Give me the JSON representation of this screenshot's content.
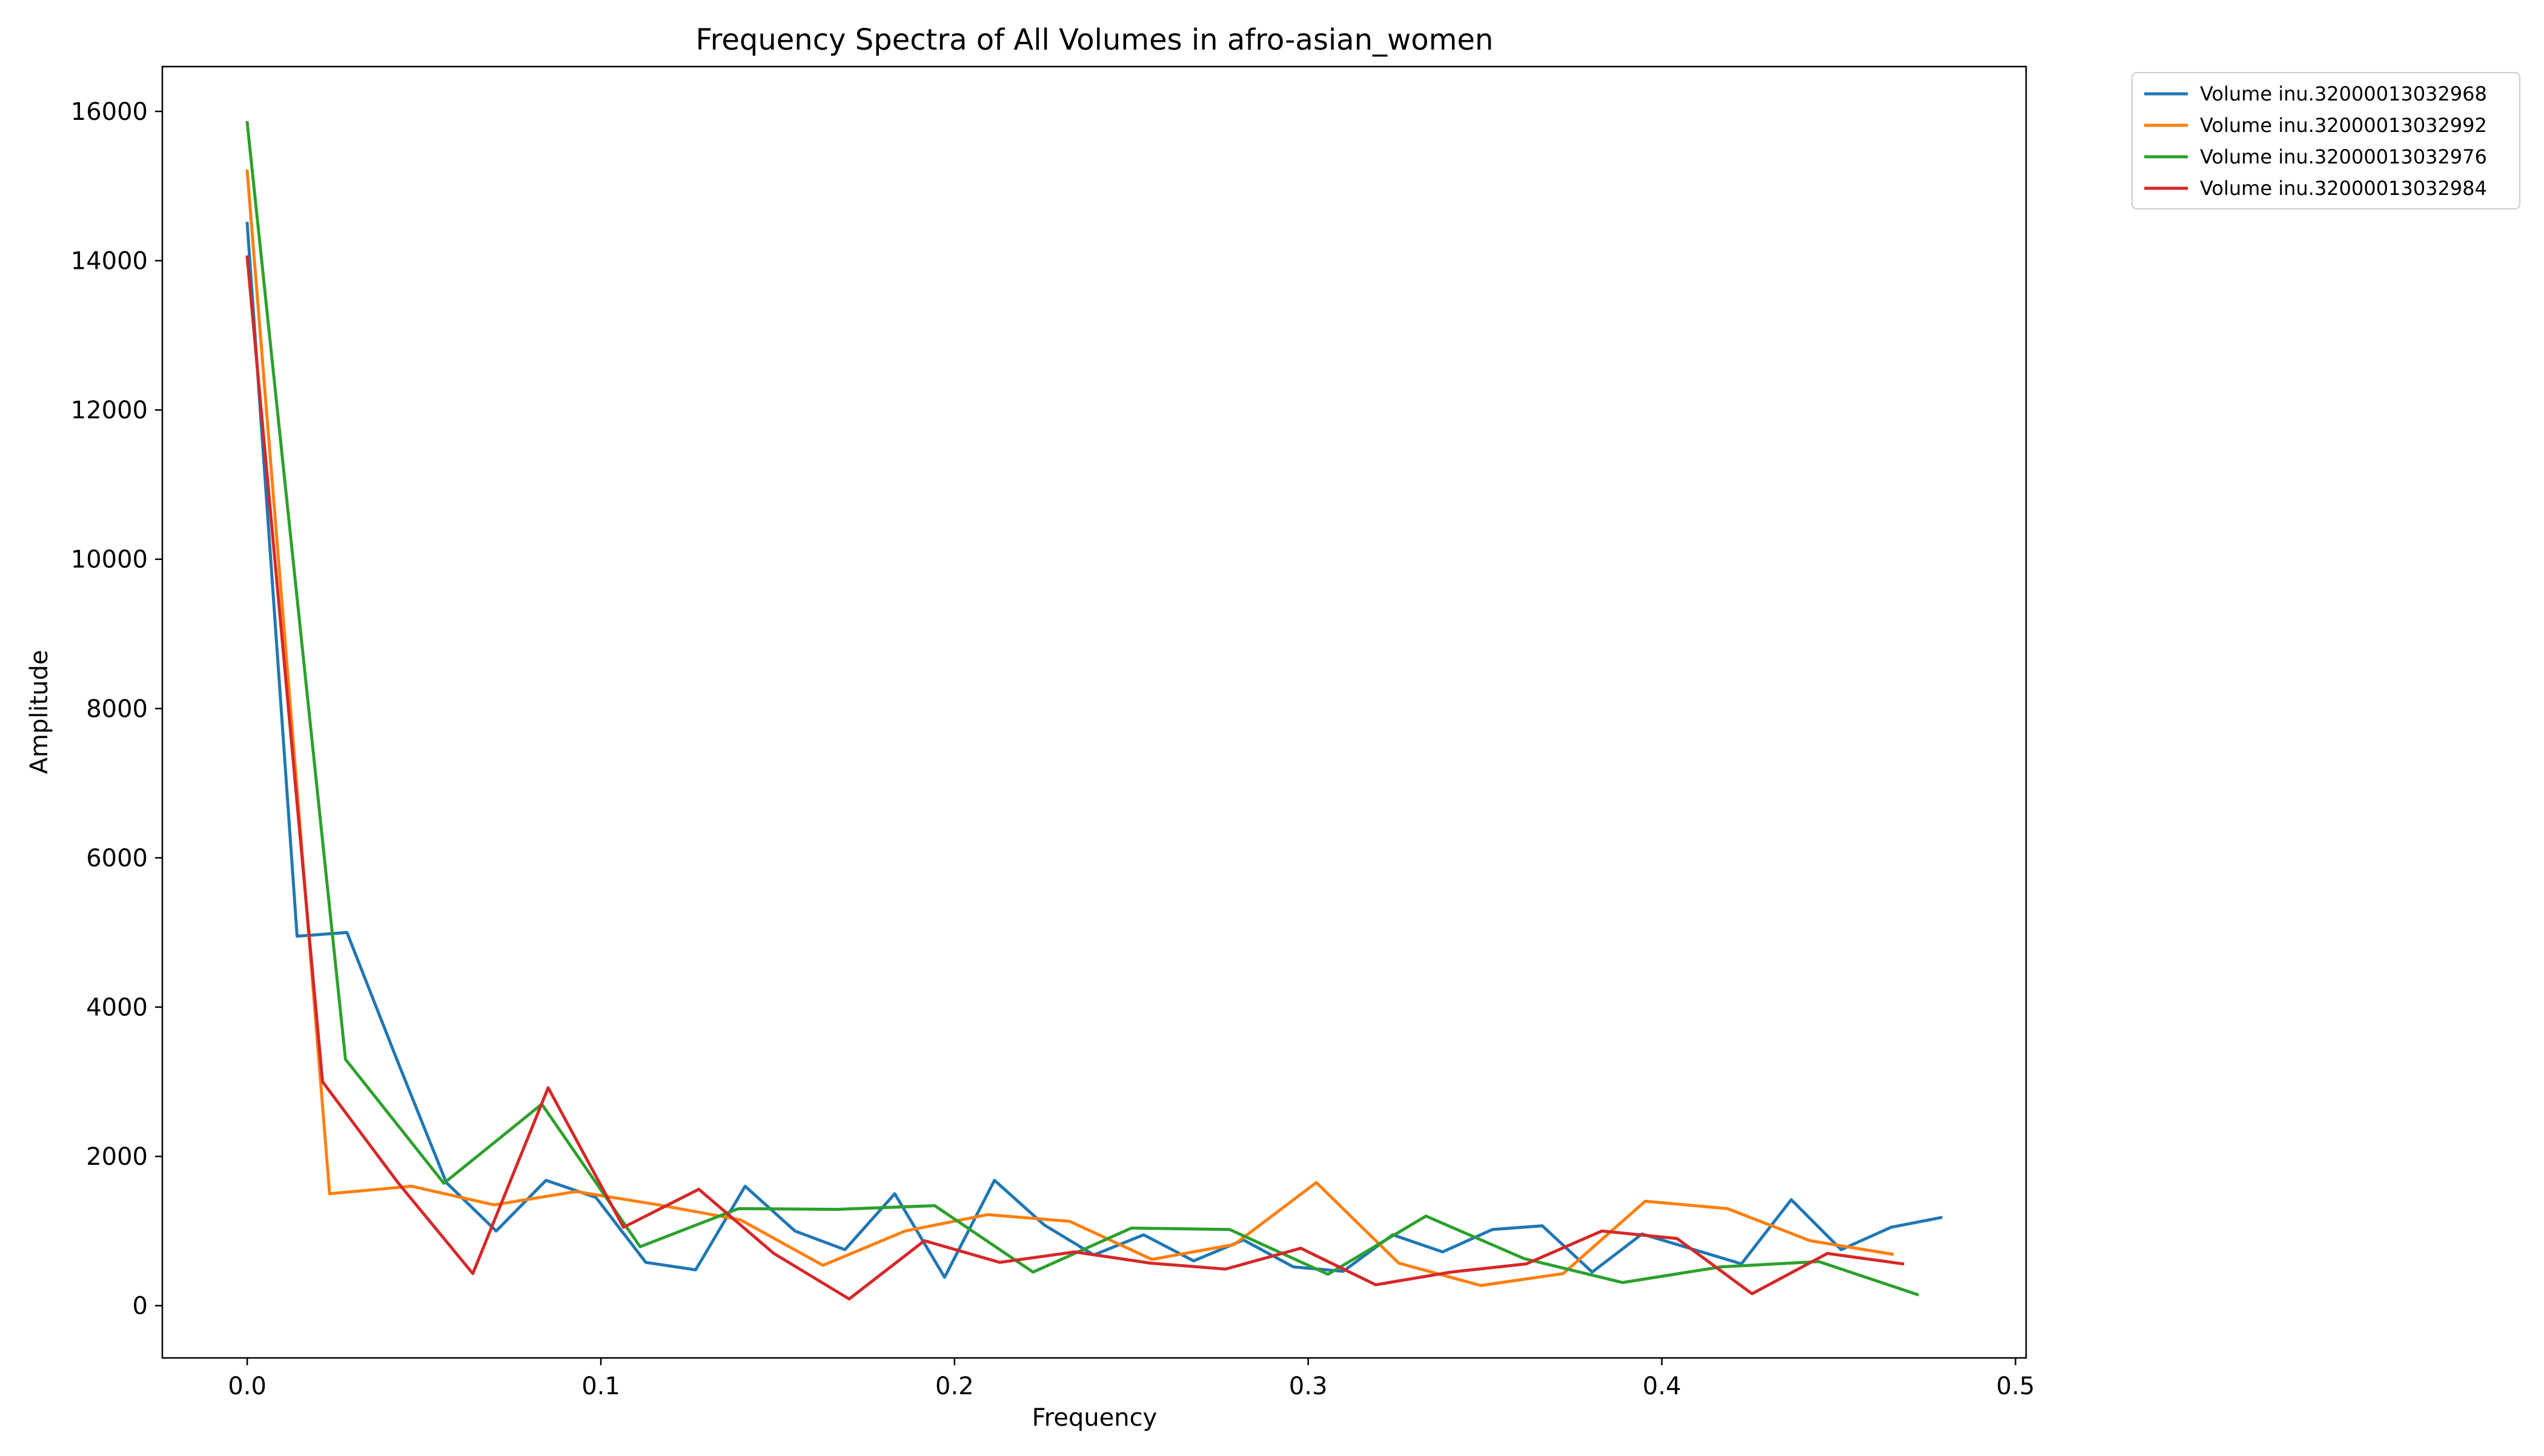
{
  "chart_data": {
    "type": "line",
    "title": "Frequency Spectra of All Volumes in afro-asian_women",
    "xlabel": "Frequency",
    "ylabel": "Amplitude",
    "xlim": [
      -0.024,
      0.503
    ],
    "ylim": [
      -700,
      16600
    ],
    "xticks": [
      0.0,
      0.1,
      0.2,
      0.3,
      0.4,
      0.5
    ],
    "xtick_labels": [
      "0.0",
      "0.1",
      "0.2",
      "0.3",
      "0.4",
      "0.5"
    ],
    "yticks": [
      0,
      2000,
      4000,
      6000,
      8000,
      10000,
      12000,
      14000,
      16000
    ],
    "ytick_labels": [
      "0",
      "2000",
      "4000",
      "6000",
      "8000",
      "10000",
      "12000",
      "14000",
      "16000"
    ],
    "grid": false,
    "legend_position": "outside-top-right",
    "series": [
      {
        "name": "Volume inu.32000013032968",
        "color": "#1f77b4",
        "x": [
          0.0,
          0.0141,
          0.0282,
          0.0423,
          0.0563,
          0.0704,
          0.0845,
          0.0986,
          0.1127,
          0.1268,
          0.1408,
          0.1549,
          0.169,
          0.1831,
          0.1972,
          0.2113,
          0.2254,
          0.2394,
          0.2535,
          0.2676,
          0.2817,
          0.2958,
          0.3099,
          0.3239,
          0.338,
          0.3521,
          0.3662,
          0.3803,
          0.3944,
          0.4085,
          0.4225,
          0.4366,
          0.4507,
          0.4648,
          0.4789
        ],
        "y": [
          14500,
          4950,
          5000,
          3300,
          1650,
          1000,
          1680,
          1450,
          580,
          480,
          1600,
          1000,
          750,
          1500,
          380,
          1680,
          1080,
          680,
          950,
          600,
          880,
          520,
          460,
          950,
          720,
          1020,
          1070,
          450,
          960,
          760,
          560,
          1420,
          750,
          1050,
          1180
        ]
      },
      {
        "name": "Volume inu.32000013032992",
        "color": "#ff7f0e",
        "x": [
          0.0,
          0.0233,
          0.0465,
          0.0698,
          0.093,
          0.1163,
          0.1395,
          0.1628,
          0.186,
          0.2093,
          0.2326,
          0.2558,
          0.2791,
          0.3023,
          0.3256,
          0.3488,
          0.3721,
          0.3953,
          0.4186,
          0.4419,
          0.4651
        ],
        "y": [
          15200,
          1500,
          1600,
          1350,
          1530,
          1350,
          1150,
          540,
          1000,
          1220,
          1130,
          620,
          820,
          1650,
          570,
          270,
          430,
          1400,
          1300,
          870,
          690
        ]
      },
      {
        "name": "Volume inu.32000013032976",
        "color": "#2ca02c",
        "x": [
          0.0,
          0.0278,
          0.0556,
          0.0833,
          0.1111,
          0.1389,
          0.1667,
          0.1944,
          0.2222,
          0.25,
          0.2778,
          0.3056,
          0.3333,
          0.3611,
          0.3889,
          0.4167,
          0.4444,
          0.4722
        ],
        "y": [
          15850,
          3300,
          1640,
          2700,
          790,
          1300,
          1290,
          1340,
          450,
          1040,
          1020,
          420,
          1200,
          630,
          310,
          520,
          590,
          150
        ]
      },
      {
        "name": "Volume inu.32000013032984",
        "color": "#d62728",
        "x": [
          0.0,
          0.0213,
          0.0426,
          0.0638,
          0.0851,
          0.1064,
          0.1277,
          0.1489,
          0.1702,
          0.1915,
          0.2128,
          0.234,
          0.2553,
          0.2766,
          0.2979,
          0.3191,
          0.3404,
          0.3617,
          0.383,
          0.4043,
          0.4255,
          0.4468,
          0.4681
        ],
        "y": [
          14050,
          3000,
          1650,
          430,
          2920,
          1050,
          1560,
          700,
          90,
          870,
          580,
          720,
          570,
          490,
          770,
          280,
          450,
          560,
          1000,
          900,
          160,
          700,
          560
        ]
      }
    ]
  }
}
